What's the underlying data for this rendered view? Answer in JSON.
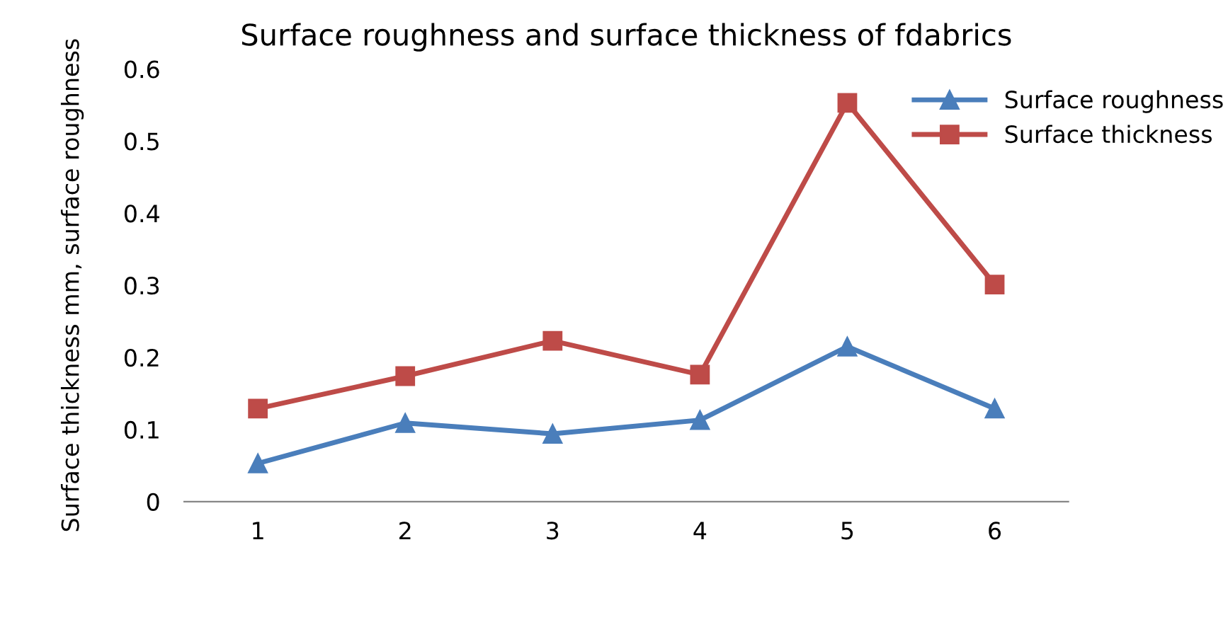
{
  "chart_data": {
    "type": "line",
    "title": "Surface roughness and surface thickness of fdabrics",
    "ylabel": "Surface thickness mm, surface roughness",
    "categories": [
      "1",
      "2",
      "3",
      "4",
      "5",
      "6"
    ],
    "series": [
      {
        "name": "Surface roughness",
        "color": "#4a7ebb",
        "marker": "triangle",
        "values": [
          0.053,
          0.109,
          0.094,
          0.113,
          0.215,
          0.129
        ]
      },
      {
        "name": "Surface thickness",
        "color": "#be4b48",
        "marker": "square",
        "values": [
          0.129,
          0.174,
          0.223,
          0.176,
          0.553,
          0.301
        ]
      }
    ],
    "ylim": [
      0,
      0.6
    ],
    "yticks": [
      {
        "value": 0,
        "label": "0"
      },
      0.1,
      0.2,
      0.3,
      0.4,
      0.5,
      0.6
    ],
    "grid": false,
    "legend": "top right",
    "line_style": "solid"
  }
}
